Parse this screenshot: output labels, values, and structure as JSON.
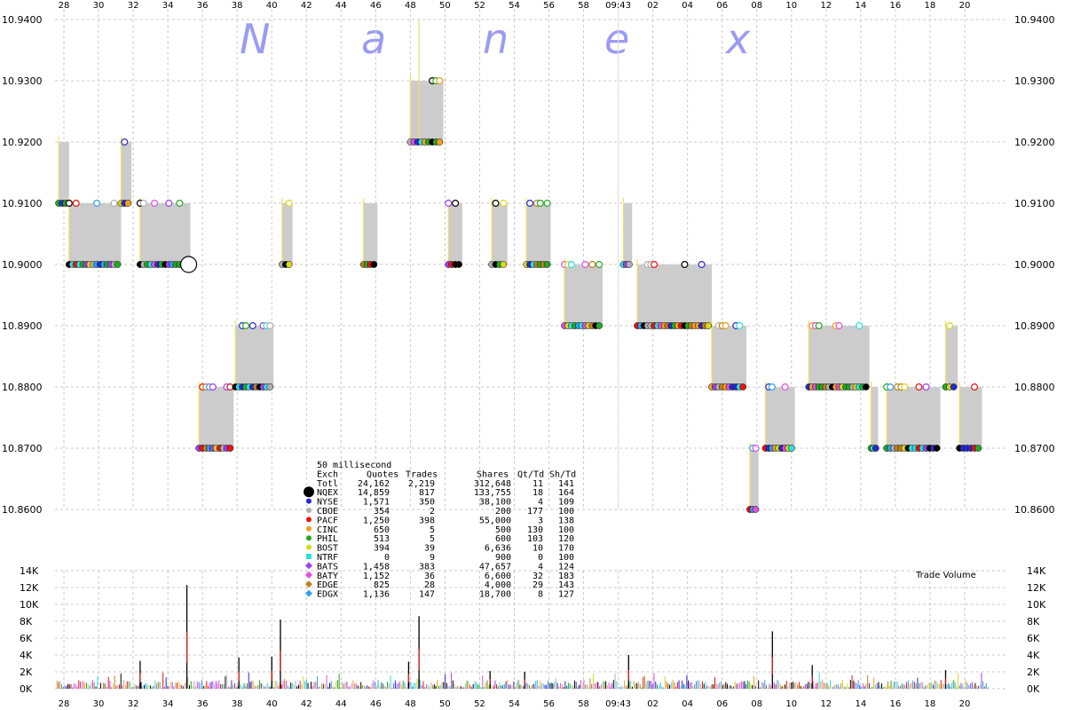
{
  "brand": {
    "letters": [
      "N",
      "a",
      "n",
      "e",
      "x"
    ]
  },
  "chart_data": [
    {
      "type": "line",
      "title": "",
      "time_axis": {
        "labels": [
          "28",
          "30",
          "32",
          "34",
          "36",
          "38",
          "40",
          "42",
          "44",
          "46",
          "48",
          "50",
          "52",
          "54",
          "56",
          "58",
          "09:43",
          "02",
          "04",
          "06",
          "08",
          "10",
          "12",
          "14",
          "16",
          "18",
          "20"
        ],
        "center_label": "09:43"
      },
      "y_ticks": [
        "10.9400",
        "10.9300",
        "10.9200",
        "10.9100",
        "10.9000",
        "10.8900",
        "10.8800",
        "10.8700",
        "10.8600"
      ],
      "ylim": [
        10.86,
        10.94
      ],
      "nbbo_bands": [
        {
          "x0": "27.7",
          "x1": "28.3",
          "bid": 10.91,
          "ask": 10.92
        },
        {
          "x0": "28.3",
          "x1": "31.3",
          "bid": 10.9,
          "ask": 10.91
        },
        {
          "x0": "31.3",
          "x1": "31.9",
          "bid": 10.91,
          "ask": 10.92
        },
        {
          "x0": "32.4",
          "x1": "35.3",
          "bid": 10.9,
          "ask": 10.91
        },
        {
          "x0": "35.8",
          "x1": "37.8",
          "bid": 10.87,
          "ask": 10.88
        },
        {
          "x0": "37.9",
          "x1": "40.1",
          "bid": 10.88,
          "ask": 10.89
        },
        {
          "x0": "40.6",
          "x1": "41.2",
          "bid": 10.9,
          "ask": 10.91
        },
        {
          "x0": "45.3",
          "x1": "46.1",
          "bid": 10.9,
          "ask": 10.91
        },
        {
          "x0": "48.0",
          "x1": "49.9",
          "bid": 10.92,
          "ask": 10.93
        },
        {
          "x0": "50.2",
          "x1": "51.0",
          "bid": 10.9,
          "ask": 10.91
        },
        {
          "x0": "52.7",
          "x1": "53.6",
          "bid": 10.9,
          "ask": 10.91
        },
        {
          "x0": "54.7",
          "x1": "56.1",
          "bid": 10.9,
          "ask": 10.91
        },
        {
          "x0": "56.9",
          "x1": "59.1",
          "bid": 10.89,
          "ask": 10.9
        },
        {
          "x0": "60.3",
          "x1": "60.8",
          "bid": 10.9,
          "ask": 10.91
        },
        {
          "x0": "61.1",
          "x1": "65.4",
          "bid": 10.89,
          "ask": 10.9
        },
        {
          "x0": "65.4",
          "x1": "67.4",
          "bid": 10.88,
          "ask": 10.89
        },
        {
          "x0": "67.6",
          "x1": "68.1",
          "bid": 10.86,
          "ask": 10.87
        },
        {
          "x0": "68.5",
          "x1": "70.2",
          "bid": 10.87,
          "ask": 10.88
        },
        {
          "x0": "71.0",
          "x1": "74.5",
          "bid": 10.88,
          "ask": 10.89
        },
        {
          "x0": "74.6",
          "x1": "75.0",
          "bid": 10.87,
          "ask": 10.88
        },
        {
          "x0": "75.5",
          "x1": "78.6",
          "bid": 10.87,
          "ask": 10.88
        },
        {
          "x0": "78.9",
          "x1": "79.6",
          "bid": 10.88,
          "ask": 10.89
        },
        {
          "x0": "79.7",
          "x1": "81.0",
          "bid": 10.87,
          "ask": 10.88
        }
      ]
    },
    {
      "type": "bar",
      "title": "Trade Volume",
      "y_ticks": [
        "14K",
        "12K",
        "10K",
        "8K",
        "6K",
        "4K",
        "2K",
        "0K"
      ],
      "ylim": [
        0,
        14000
      ],
      "spikes": [
        {
          "t": "35.1",
          "v": 12300
        },
        {
          "t": "40.5",
          "v": 8200
        },
        {
          "t": "40.0",
          "v": 3800
        },
        {
          "t": "48.5",
          "v": 8600
        },
        {
          "t": "32.4",
          "v": 3300
        },
        {
          "t": "38.1",
          "v": 3700
        },
        {
          "t": "47.9",
          "v": 3200
        },
        {
          "t": "60.6",
          "v": 4000
        },
        {
          "t": "68.9",
          "v": 6800
        },
        {
          "t": "71.2",
          "v": 2800
        },
        {
          "t": "52.6",
          "v": 2100
        },
        {
          "t": "54.6",
          "v": 2000
        },
        {
          "t": "78.9",
          "v": 2200
        }
      ]
    }
  ],
  "legend_table": {
    "title": "50 millisecond",
    "headers": [
      "Exch",
      "Quotes",
      "Trades",
      "Shares",
      "Qt/Td",
      "Sh/Td"
    ],
    "rows": [
      {
        "exch": "Totl",
        "quotes": "24,162",
        "trades": "2,219",
        "shares": "312,648",
        "qt_td": "11",
        "sh_td": "141",
        "color": "",
        "shape": "none"
      },
      {
        "exch": "NQEX",
        "quotes": "14,859",
        "trades": "817",
        "shares": "133,755",
        "qt_td": "18",
        "sh_td": "164",
        "color": "#000000",
        "shape": "big-circle"
      },
      {
        "exch": "NYSE",
        "quotes": "1,571",
        "trades": "350",
        "shares": "38,100",
        "qt_td": "4",
        "sh_td": "109",
        "color": "#2a2ad0",
        "shape": "circle"
      },
      {
        "exch": "CBOE",
        "quotes": "354",
        "trades": "2",
        "shares": "200",
        "qt_td": "177",
        "sh_td": "100",
        "color": "#b0b0b0",
        "shape": "circle"
      },
      {
        "exch": "PACF",
        "quotes": "1,250",
        "trades": "398",
        "shares": "55,000",
        "qt_td": "3",
        "sh_td": "138",
        "color": "#ee1111",
        "shape": "circle"
      },
      {
        "exch": "CINC",
        "quotes": "650",
        "trades": "5",
        "shares": "500",
        "qt_td": "130",
        "sh_td": "100",
        "color": "#f0a020",
        "shape": "circle"
      },
      {
        "exch": "PHIL",
        "quotes": "513",
        "trades": "5",
        "shares": "600",
        "qt_td": "103",
        "sh_td": "120",
        "color": "#22aa22",
        "shape": "circle"
      },
      {
        "exch": "BOST",
        "quotes": "394",
        "trades": "39",
        "shares": "6,636",
        "qt_td": "10",
        "sh_td": "170",
        "color": "#d8d820",
        "shape": "circle"
      },
      {
        "exch": "NTRF",
        "quotes": "0",
        "trades": "9",
        "shares": "900",
        "qt_td": "0",
        "sh_td": "100",
        "color": "#30e0e0",
        "shape": "square"
      },
      {
        "exch": "BATS",
        "quotes": "1,458",
        "trades": "383",
        "shares": "47,657",
        "qt_td": "4",
        "sh_td": "124",
        "color": "#a040f0",
        "shape": "diamond"
      },
      {
        "exch": "BATY",
        "quotes": "1,152",
        "trades": "36",
        "shares": "6,600",
        "qt_td": "32",
        "sh_td": "183",
        "color": "#e050e0",
        "shape": "diamond"
      },
      {
        "exch": "EDGE",
        "quotes": "825",
        "trades": "28",
        "shares": "4,000",
        "qt_td": "29",
        "sh_td": "143",
        "color": "#c08020",
        "shape": "diamond"
      },
      {
        "exch": "EDGX",
        "quotes": "1,136",
        "trades": "147",
        "shares": "18,700",
        "qt_td": "8",
        "sh_td": "127",
        "color": "#30a0f0",
        "shape": "diamond"
      }
    ]
  }
}
